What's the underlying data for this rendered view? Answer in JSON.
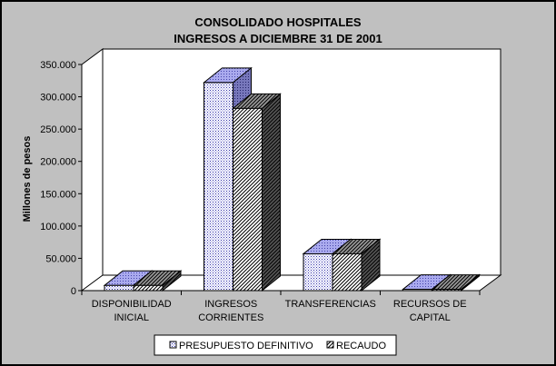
{
  "chart_data": {
    "type": "bar",
    "title": [
      "CONSOLIDADO HOSPITALES",
      "INGRESOS A DICIEMBRE 31 DE 2001"
    ],
    "xlabel": "",
    "ylabel": "Millones de pesos",
    "ylim": [
      0,
      350000
    ],
    "yticks": [
      {
        "value": 0,
        "label": "0"
      },
      {
        "value": 50000,
        "label": "50.000"
      },
      {
        "value": 100000,
        "label": "100.000"
      },
      {
        "value": 150000,
        "label": "150.000"
      },
      {
        "value": 200000,
        "label": "200.000"
      },
      {
        "value": 250000,
        "label": "250.000"
      },
      {
        "value": 300000,
        "label": "300.000"
      },
      {
        "value": 350000,
        "label": "350.000"
      }
    ],
    "categories": [
      [
        "DISPONIBILIDAD",
        "INICIAL"
      ],
      [
        "INGRESOS",
        "CORRIENTES"
      ],
      [
        "TRANSFERENCIAS"
      ],
      [
        "RECURSOS DE",
        "CAPITAL"
      ]
    ],
    "series": [
      {
        "name": "PRESUPUESTO DEFINITIVO",
        "values": [
          8000,
          322000,
          57000,
          2000
        ],
        "front_color": "#eeeeff",
        "top_color": "#9999dd",
        "side_color": "#6666aa"
      },
      {
        "name": "RECAUDO",
        "values": [
          8000,
          282000,
          57000,
          2000
        ],
        "front_color": "#ffffff",
        "top_color": "#777777",
        "side_color": "#444444"
      }
    ],
    "grid": false,
    "legend": "bottom",
    "three_d": true
  }
}
